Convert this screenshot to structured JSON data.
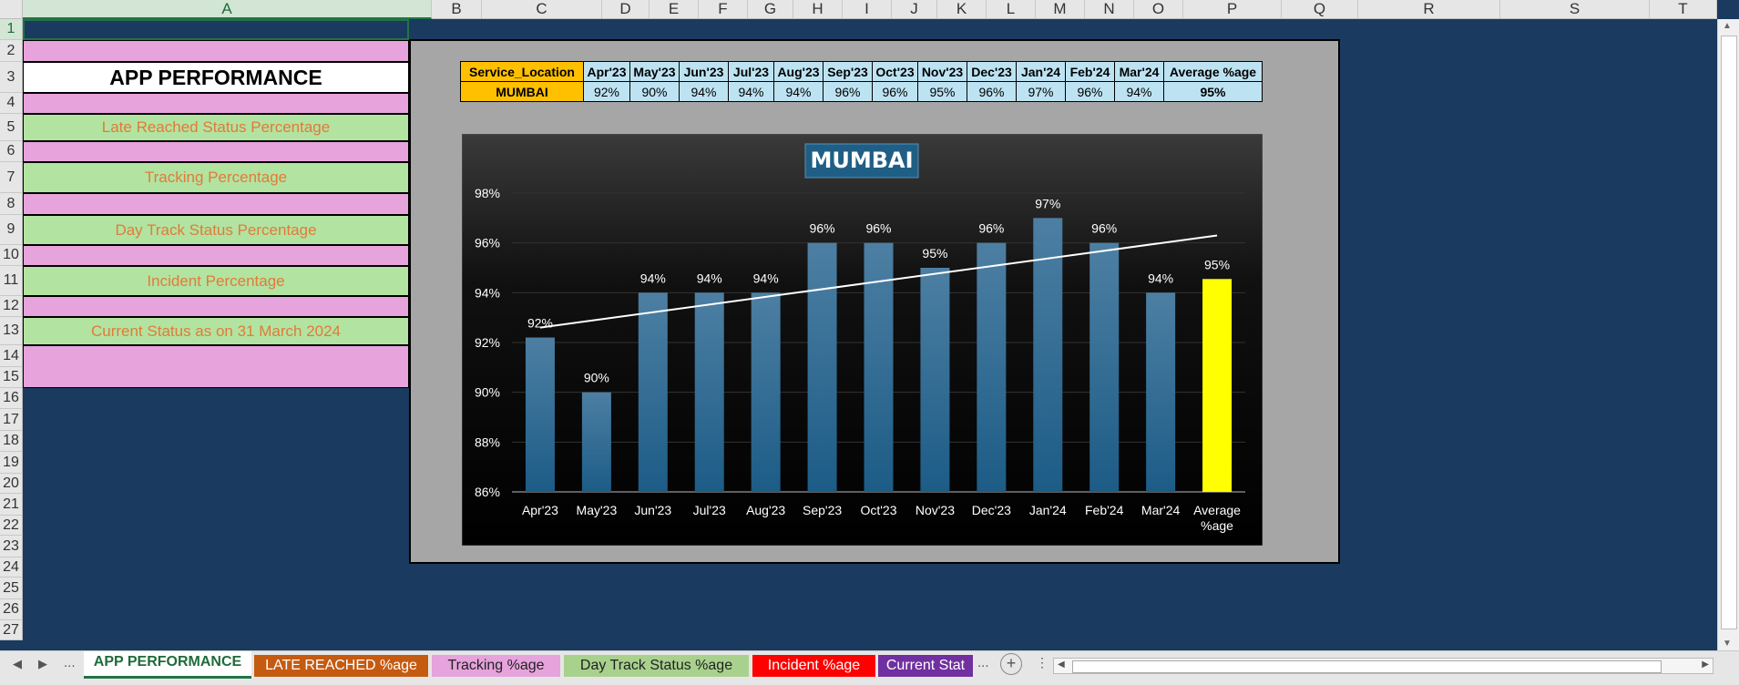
{
  "columns": [
    "A",
    "B",
    "C",
    "D",
    "E",
    "F",
    "G",
    "H",
    "I",
    "J",
    "K",
    "L",
    "M",
    "N",
    "O",
    "P",
    "Q",
    "R",
    "S",
    "T"
  ],
  "rows": [
    "1",
    "2",
    "3",
    "4",
    "5",
    "6",
    "7",
    "8",
    "9",
    "10",
    "11",
    "12",
    "13",
    "14",
    "15",
    "16",
    "17",
    "18",
    "19",
    "20",
    "21",
    "22",
    "23",
    "24",
    "25",
    "26",
    "27"
  ],
  "menu_cells": {
    "title": "APP PERFORMANCE",
    "item1": "Late Reached Status Percentage",
    "item2": "Tracking Percentage",
    "item3": "Day Track Status Percentage",
    "item4": "Incident Percentage",
    "item5": "Current Status as on 31 March 2024"
  },
  "data_table": {
    "headers": [
      "Service_Location",
      "Apr'23",
      "May'23",
      "Jun'23",
      "Jul'23",
      "Aug'23",
      "Sep'23",
      "Oct'23",
      "Nov'23",
      "Dec'23",
      "Jan'24",
      "Feb'24",
      "Mar'24",
      "Average %age"
    ],
    "row": [
      "MUMBAI",
      "92%",
      "90%",
      "94%",
      "94%",
      "94%",
      "96%",
      "96%",
      "95%",
      "96%",
      "97%",
      "96%",
      "94%",
      "95%"
    ]
  },
  "chart_data": {
    "type": "bar",
    "title": "MUMBAI",
    "categories": [
      "Apr'23",
      "May'23",
      "Jun'23",
      "Jul'23",
      "Aug'23",
      "Sep'23",
      "Oct'23",
      "Nov'23",
      "Dec'23",
      "Jan'24",
      "Feb'24",
      "Mar'24",
      "Average %age"
    ],
    "values": [
      92.2,
      90,
      94,
      94,
      94,
      96,
      96,
      95,
      96,
      97,
      96,
      94,
      94.55
    ],
    "data_labels": [
      "92%",
      "90%",
      "94%",
      "94%",
      "94%",
      "96%",
      "96%",
      "95%",
      "96%",
      "97%",
      "96%",
      "94%",
      "95%"
    ],
    "ylim": [
      86,
      98
    ],
    "yticks": [
      86,
      88,
      90,
      92,
      94,
      96,
      98
    ],
    "ytick_labels": [
      "86%",
      "88%",
      "90%",
      "92%",
      "94%",
      "96%",
      "98%"
    ],
    "trendline": {
      "start": 92.6,
      "end": 96.3
    },
    "bar_color": "#2e6d97",
    "highlight_color": "#ffff00",
    "grid": true,
    "legend": "none"
  },
  "sheet_tabs": [
    {
      "label": "APP PERFORMANCE",
      "bg": "#ffffff",
      "color": "#1f6b3a"
    },
    {
      "label": "LATE REACHED %age",
      "bg": "#c55a11",
      "color": "#ffffff"
    },
    {
      "label": "Tracking %age",
      "bg": "#e6a3dc",
      "color": "#222222"
    },
    {
      "label": "Day Track Status %age",
      "bg": "#a9d18e",
      "color": "#222222"
    },
    {
      "label": "Incident %age",
      "bg": "#ff0000",
      "color": "#ffffff"
    },
    {
      "label": "Current Stat",
      "bg": "#7030a0",
      "color": "#ffffff"
    }
  ],
  "tab_ellipsis": "...",
  "add_sheet_symbol": "+"
}
